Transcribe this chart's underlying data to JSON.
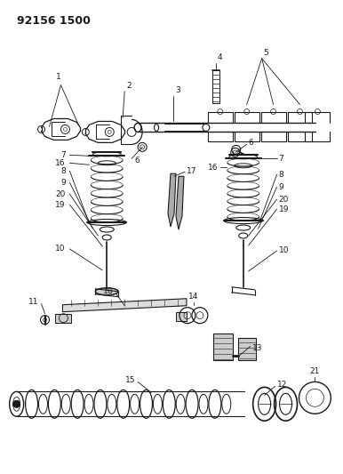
{
  "title": "92156 1500",
  "bg_color": "#ffffff",
  "line_color": "#1a1a1a",
  "title_fontsize": 9,
  "label_fontsize": 6.5,
  "fig_width": 3.86,
  "fig_height": 5.33,
  "dpi": 100
}
